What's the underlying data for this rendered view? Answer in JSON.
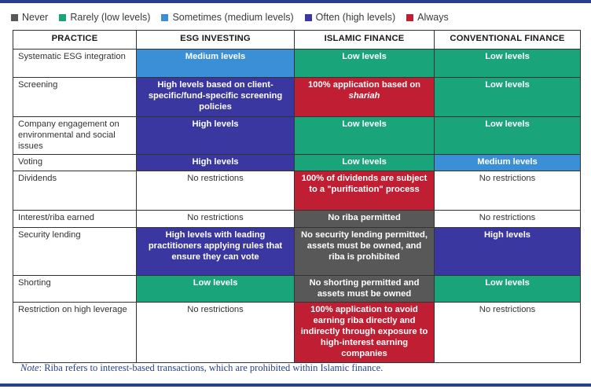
{
  "legend": [
    {
      "label": "Never",
      "color": "#585858"
    },
    {
      "label": "Rarely (low levels)",
      "color": "#1aa47a"
    },
    {
      "label": "Sometimes (medium levels)",
      "color": "#3b8fd6"
    },
    {
      "label": "Often (high levels)",
      "color": "#3b37a0"
    },
    {
      "label": "Always",
      "color": "#c01e32"
    }
  ],
  "headers": [
    "PRACTICE",
    "ESG INVESTING",
    "ISLAMIC FINANCE",
    "CONVENTIONAL FINANCE"
  ],
  "rows": [
    {
      "practice": "Systematic ESG integration",
      "esg": {
        "text": "Medium levels",
        "level": "sometimes"
      },
      "islamic": {
        "text": "Low levels",
        "level": "rarely"
      },
      "conventional": {
        "text": "Low levels",
        "level": "rarely"
      }
    },
    {
      "practice": "Screening",
      "esg": {
        "text": "High levels based on client-specific/fund-specific screening policies",
        "level": "often"
      },
      "islamic": {
        "text": "100% application based on",
        "italic": "shariah",
        "level": "always"
      },
      "conventional": {
        "text": "Low levels",
        "level": "rarely"
      }
    },
    {
      "practice": "Company engagement on environmental and social issues",
      "esg": {
        "text": "High levels",
        "level": "often"
      },
      "islamic": {
        "text": "Low levels",
        "level": "rarely"
      },
      "conventional": {
        "text": "Low levels",
        "level": "rarely"
      }
    },
    {
      "practice": "Voting",
      "esg": {
        "text": "High levels",
        "level": "often"
      },
      "islamic": {
        "text": "Low levels",
        "level": "rarely"
      },
      "conventional": {
        "text": "Medium levels",
        "level": "sometimes"
      }
    },
    {
      "practice": "Dividends",
      "esg": {
        "text": "No restrictions",
        "level": "none"
      },
      "islamic": {
        "text": "100% of dividends are subject to a \"purification\" process",
        "level": "always"
      },
      "conventional": {
        "text": "No restrictions",
        "level": "none"
      }
    },
    {
      "practice": "Interest/riba earned",
      "esg": {
        "text": "No restrictions",
        "level": "none"
      },
      "islamic": {
        "text": "No riba permitted",
        "level": "never"
      },
      "conventional": {
        "text": "No restrictions",
        "level": "none"
      }
    },
    {
      "practice": "Security lending",
      "esg": {
        "text": "High levels with leading practitioners applying rules that ensure they can vote",
        "level": "often"
      },
      "islamic": {
        "text": "No security lending permitted, assets must be owned, and riba is prohibited",
        "level": "never"
      },
      "conventional": {
        "text": "High levels",
        "level": "often"
      }
    },
    {
      "practice": "Shorting",
      "esg": {
        "text": "Low levels",
        "level": "rarely"
      },
      "islamic": {
        "text": "No shorting permitted and assets must be owned",
        "level": "never"
      },
      "conventional": {
        "text": "Low levels",
        "level": "rarely"
      }
    },
    {
      "practice": "Restriction on high leverage",
      "esg": {
        "text": "No restrictions",
        "level": "none"
      },
      "islamic": {
        "text": "100% application to avoid earning riba directly and indirectly through exposure to high-interest earning companies",
        "level": "always"
      },
      "conventional": {
        "text": "No restrictions",
        "level": "none"
      }
    }
  ],
  "note": {
    "label": "Note",
    "text": "Riba refers to interest-based transactions, which are prohibited within Islamic finance."
  }
}
